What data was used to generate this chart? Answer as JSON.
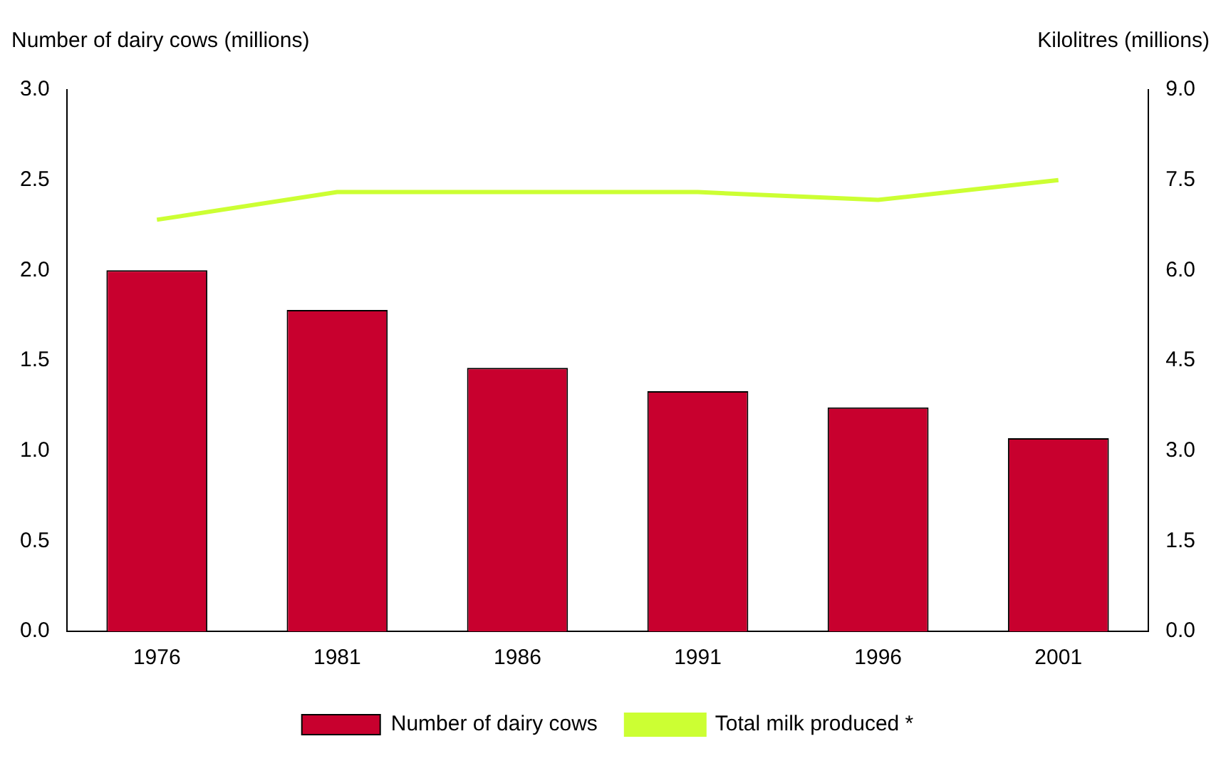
{
  "chart_data": {
    "type": "bar",
    "ylabel": "Number of dairy cows (millions)",
    "y2label": "Kilolitres (millions)",
    "categories": [
      "1976",
      "1981",
      "1986",
      "1991",
      "1996",
      "2001"
    ],
    "series": [
      {
        "name": "Number of dairy cows",
        "color": "#c8002e",
        "values": [
          2.0,
          1.78,
          1.46,
          1.33,
          1.24,
          1.07
        ]
      },
      {
        "name": "Total milk produced *",
        "type": "line",
        "axis": "y2",
        "color": "#ccff33",
        "values": [
          6.84,
          7.3,
          7.3,
          7.3,
          7.17,
          7.5
        ]
      }
    ],
    "ylim": [
      0,
      3
    ],
    "yticks": [
      {
        "value": 0,
        "label": "0.0"
      },
      {
        "value": 0.5,
        "label": "0.5"
      },
      {
        "value": 1,
        "label": "1.0"
      },
      {
        "value": 1.5,
        "label": "1.5"
      },
      {
        "value": 2,
        "label": "2.0"
      },
      {
        "value": 2.5,
        "label": "2.5"
      },
      {
        "value": 3,
        "label": "3.0"
      }
    ],
    "y2lim": [
      0,
      9
    ],
    "y2ticks": [
      {
        "value": 0,
        "label": "0.0"
      },
      {
        "value": 1.5,
        "label": "1.5"
      },
      {
        "value": 3,
        "label": "3.0"
      },
      {
        "value": 4.5,
        "label": "4.5"
      },
      {
        "value": 6,
        "label": "6.0"
      },
      {
        "value": 7.5,
        "label": "7.5"
      },
      {
        "value": 9,
        "label": "9.0"
      }
    ],
    "grid": false,
    "legend": "bottom",
    "marker": "none",
    "line_style": "solid"
  }
}
